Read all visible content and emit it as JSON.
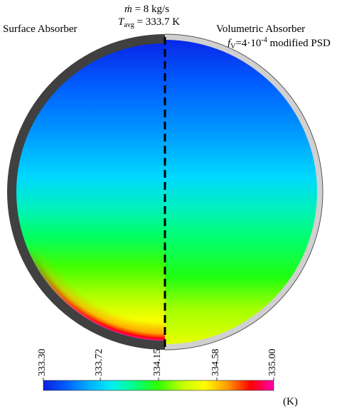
{
  "header": {
    "mass_flow_symbol": "ṁ",
    "mass_flow_text": " = 8 kg/s",
    "temp_symbol": "T",
    "temp_subscript": "avg",
    "temp_text": " = 333.7 K"
  },
  "left_panel": {
    "label": "Surface Absorber",
    "wall_color": "#404040"
  },
  "right_panel": {
    "label_line1": "Volumetric Absorber",
    "fv_symbol": "f",
    "fv_subscript": "V",
    "fv_text_before": "=4·10",
    "fv_exponent": "-4",
    "fv_text_after": " modified PSD",
    "wall_color": "#d0d0d0"
  },
  "colorbar": {
    "min": 333.3,
    "max": 335.0,
    "ticks": [
      "333.30",
      "333.72",
      "334.15",
      "334.58",
      "335.00"
    ],
    "unit": "(K)",
    "colors": [
      "#0a20e0",
      "#0060ff",
      "#00b0ff",
      "#00f0f0",
      "#00ff80",
      "#30ff00",
      "#c0ff00",
      "#ffff00",
      "#ff9900",
      "#ff0000",
      "#ff00b0"
    ]
  }
}
